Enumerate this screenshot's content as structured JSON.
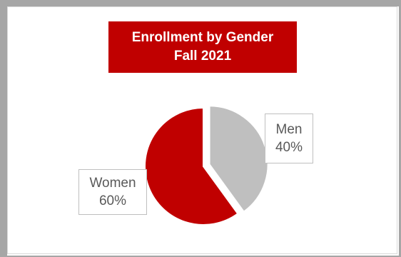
{
  "chart_data": {
    "type": "pie",
    "title": "Enrollment by Gender",
    "subtitle": "Fall 2021",
    "slices": [
      {
        "label": "Men",
        "value": 40,
        "value_label": "40%",
        "color": "#bfbfbf",
        "exploded": true
      },
      {
        "label": "Women",
        "value": 60,
        "value_label": "60%",
        "color": "#c00000",
        "exploded": false
      }
    ],
    "title_background": "#c00000",
    "frame_color": "#a6a6a6"
  }
}
